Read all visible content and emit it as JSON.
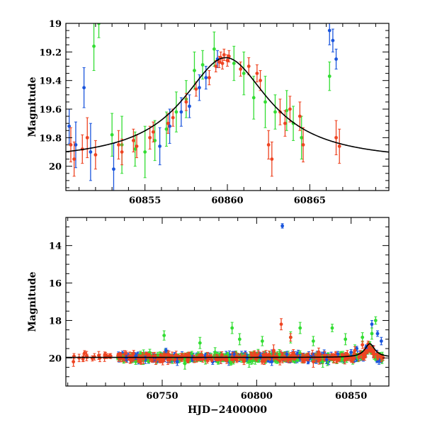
{
  "chart_data": [
    {
      "type": "scatter",
      "panel": "top",
      "xlabel": "",
      "ylabel": "Magnitude",
      "xlim": [
        60850.2,
        60869.8
      ],
      "ylim": [
        20.17,
        19.0
      ],
      "y_inverted": true,
      "x_ticks": [
        "60855",
        "60860",
        "60865"
      ],
      "y_ticks": [
        "19",
        "19.2",
        "19.4",
        "19.6",
        "19.8",
        "20"
      ],
      "colors": {
        "g": "#33dd33",
        "b": "#1a55dd",
        "r": "#ee4422",
        "model": "#000000"
      },
      "model_curve": {
        "type": "line",
        "peak_x": 60859.9,
        "peak_mag": 19.24,
        "baseline_mag": 19.97,
        "x": [
          60850.2,
          60852,
          60854,
          60855,
          60856,
          60857,
          60858,
          60859,
          60859.9,
          60861,
          60862,
          60863,
          60864,
          60865,
          60867,
          60869.8
        ],
        "y": [
          19.93,
          19.89,
          19.83,
          19.77,
          19.69,
          19.58,
          19.45,
          19.31,
          19.24,
          19.3,
          19.42,
          19.55,
          19.66,
          19.74,
          19.84,
          19.91
        ]
      },
      "series": [
        {
          "color": "g",
          "points": [
            [
              60851.9,
              19.16,
              0.17
            ],
            [
              60852.2,
              19.0,
              0.1
            ],
            [
              60853.0,
              19.78,
              0.15
            ],
            [
              60853.6,
              19.85,
              0.2
            ],
            [
              60854.4,
              19.88,
              0.12
            ],
            [
              60855.0,
              19.9,
              0.18
            ],
            [
              60855.6,
              19.82,
              0.14
            ],
            [
              60856.3,
              19.74,
              0.12
            ],
            [
              60856.9,
              19.62,
              0.14
            ],
            [
              60857.5,
              19.53,
              0.13
            ],
            [
              60858.0,
              19.33,
              0.13
            ],
            [
              60858.5,
              19.29,
              0.1
            ],
            [
              60859.2,
              19.18,
              0.12
            ],
            [
              60860.4,
              19.28,
              0.12
            ],
            [
              60861.0,
              19.35,
              0.15
            ],
            [
              60861.6,
              19.52,
              0.15
            ],
            [
              60862.3,
              19.55,
              0.18
            ],
            [
              60862.9,
              19.62,
              0.12
            ],
            [
              60863.6,
              19.61,
              0.14
            ],
            [
              60864.0,
              19.7,
              0.12
            ],
            [
              60864.5,
              19.8,
              0.15
            ],
            [
              60866.2,
              19.37,
              0.1
            ]
          ]
        },
        {
          "color": "b",
          "points": [
            [
              60850.4,
              19.72,
              0.12
            ],
            [
              60850.8,
              19.85,
              0.16
            ],
            [
              60851.3,
              19.45,
              0.14
            ],
            [
              60851.7,
              19.9,
              0.2
            ],
            [
              60853.1,
              20.02,
              0.18
            ],
            [
              60855.9,
              19.86,
              0.13
            ],
            [
              60856.5,
              19.72,
              0.12
            ],
            [
              60857.2,
              19.62,
              0.1
            ],
            [
              60857.7,
              19.58,
              0.08
            ],
            [
              60858.3,
              19.45,
              0.09
            ],
            [
              60858.7,
              19.38,
              0.08
            ],
            [
              60859.4,
              19.25,
              0.06
            ],
            [
              60866.2,
              19.05,
              0.1
            ],
            [
              60866.4,
              19.12,
              0.08
            ],
            [
              60866.6,
              19.25,
              0.07
            ]
          ]
        },
        {
          "color": "r",
          "points": [
            [
              60850.5,
              19.85,
              0.12
            ],
            [
              60850.7,
              19.95,
              0.12
            ],
            [
              60851.2,
              19.88,
              0.1
            ],
            [
              60851.5,
              19.8,
              0.14
            ],
            [
              60852.0,
              19.92,
              0.1
            ],
            [
              60853.4,
              19.85,
              0.1
            ],
            [
              60853.6,
              19.9,
              0.09
            ],
            [
              60854.3,
              19.82,
              0.08
            ],
            [
              60854.5,
              19.86,
              0.08
            ],
            [
              60855.3,
              19.8,
              0.08
            ],
            [
              60855.5,
              19.76,
              0.07
            ],
            [
              60856.4,
              19.7,
              0.07
            ],
            [
              60856.7,
              19.66,
              0.06
            ],
            [
              60857.5,
              19.55,
              0.06
            ],
            [
              60858.1,
              19.46,
              0.05
            ],
            [
              60858.9,
              19.38,
              0.05
            ],
            [
              60859.3,
              19.3,
              0.04
            ],
            [
              60859.5,
              19.27,
              0.04
            ],
            [
              60859.6,
              19.24,
              0.04
            ],
            [
              60859.7,
              19.28,
              0.04
            ],
            [
              60859.8,
              19.22,
              0.04
            ],
            [
              60860.0,
              19.26,
              0.04
            ],
            [
              60860.1,
              19.23,
              0.04
            ],
            [
              60860.8,
              19.32,
              0.05
            ],
            [
              60861.3,
              19.3,
              0.06
            ],
            [
              60861.8,
              19.35,
              0.06
            ],
            [
              60862.0,
              19.4,
              0.07
            ],
            [
              60862.5,
              19.85,
              0.1
            ],
            [
              60862.7,
              19.95,
              0.12
            ],
            [
              60863.2,
              19.62,
              0.09
            ],
            [
              60863.5,
              19.7,
              0.09
            ],
            [
              60863.8,
              19.6,
              0.09
            ],
            [
              60864.4,
              19.65,
              0.1
            ],
            [
              60864.6,
              19.85,
              0.12
            ],
            [
              60866.6,
              19.8,
              0.12
            ],
            [
              60866.8,
              19.86,
              0.12
            ]
          ]
        }
      ]
    },
    {
      "type": "scatter",
      "panel": "bottom",
      "xlabel": "HJD−2400000",
      "ylabel": "Magnitude",
      "xlim": [
        60699,
        60870
      ],
      "ylim": [
        21.5,
        12.5
      ],
      "y_inverted": true,
      "x_ticks": [
        "60750",
        "60800",
        "60850"
      ],
      "y_ticks": [
        "14",
        "16",
        "18",
        "20"
      ],
      "colors": {
        "g": "#33dd33",
        "b": "#1a55dd",
        "r": "#ee4422",
        "model": "#000000"
      },
      "model_curve": {
        "type": "line",
        "baseline_mag": 19.97,
        "peak_x": 60859.9,
        "peak_mag": 19.24,
        "x": [
          60699,
          60850,
          60855,
          60859.9,
          60864,
          60870
        ],
        "y": [
          19.97,
          19.93,
          19.77,
          19.24,
          19.66,
          19.84
        ]
      },
      "series": [
        {
          "color": "b",
          "points": [
            [
              60813.6,
              12.95,
              0.12
            ],
            [
              60731,
              20.0,
              0.15
            ],
            [
              60736,
              19.9,
              0.18
            ],
            [
              60741,
              20.1,
              0.2
            ],
            [
              60746,
              20.0,
              0.15
            ],
            [
              60752,
              19.6,
              0.12
            ],
            [
              60758,
              20.2,
              0.2
            ],
            [
              60766,
              20.0,
              0.15
            ],
            [
              60773,
              19.9,
              0.15
            ],
            [
              60781,
              20.1,
              0.2
            ],
            [
              60788,
              19.8,
              0.15
            ],
            [
              60795,
              20.0,
              0.18
            ],
            [
              60802,
              19.9,
              0.15
            ],
            [
              60808,
              20.2,
              0.2
            ],
            [
              60816,
              19.8,
              0.15
            ],
            [
              60823,
              20.0,
              0.18
            ],
            [
              60830,
              19.9,
              0.15
            ],
            [
              60837,
              20.1,
              0.2
            ],
            [
              60843,
              19.8,
              0.15
            ],
            [
              60850,
              19.7,
              0.15
            ],
            [
              60853,
              19.5,
              0.12
            ],
            [
              60858,
              19.4,
              0.1
            ],
            [
              60861,
              18.2,
              0.2
            ],
            [
              60864,
              18.7,
              0.15
            ],
            [
              60866,
              19.1,
              0.2
            ]
          ]
        },
        {
          "color": "g",
          "points": [
            [
              60751,
              18.8,
              0.25
            ],
            [
              60770,
              19.2,
              0.3
            ],
            [
              60787,
              18.4,
              0.3
            ],
            [
              60791,
              19.0,
              0.3
            ],
            [
              60803,
              19.1,
              0.25
            ],
            [
              60818,
              18.9,
              0.3
            ],
            [
              60823,
              18.4,
              0.3
            ],
            [
              60830,
              19.1,
              0.25
            ],
            [
              60840,
              18.4,
              0.2
            ],
            [
              60847,
              19.0,
              0.3
            ],
            [
              60856,
              18.9,
              0.25
            ],
            [
              60861,
              18.7,
              0.3
            ],
            [
              60863,
              18.0,
              0.2
            ],
            [
              60740,
              20.1,
              0.25
            ],
            [
              60762,
              20.3,
              0.3
            ],
            [
              60778,
              19.7,
              0.25
            ],
            [
              60796,
              20.2,
              0.3
            ],
            [
              60812,
              19.8,
              0.25
            ],
            [
              60835,
              20.2,
              0.3
            ],
            [
              60852,
              19.6,
              0.3
            ]
          ]
        },
        {
          "color": "r",
          "points": [
            [
              60703,
              20.2,
              0.25
            ],
            [
              60706,
              20.0,
              0.2
            ],
            [
              60710,
              19.9,
              0.25
            ],
            [
              60717,
              20.0,
              0.2
            ],
            [
              60720,
              19.85,
              0.15
            ],
            [
              60728,
              20.0,
              0.2
            ],
            [
              60734,
              19.95,
              0.2
            ],
            [
              60740,
              20.05,
              0.25
            ],
            [
              60746,
              19.9,
              0.2
            ],
            [
              60753,
              20.1,
              0.25
            ],
            [
              60760,
              19.95,
              0.2
            ],
            [
              60767,
              20.05,
              0.2
            ],
            [
              60774,
              19.9,
              0.2
            ],
            [
              60781,
              20.1,
              0.2
            ],
            [
              60787,
              19.95,
              0.2
            ],
            [
              60793,
              20.05,
              0.2
            ],
            [
              60799,
              19.9,
              0.2
            ],
            [
              60804,
              20.1,
              0.25
            ],
            [
              60809,
              19.6,
              0.3
            ],
            [
              60813,
              18.2,
              0.3
            ],
            [
              60818,
              18.9,
              0.2
            ],
            [
              60824,
              20.0,
              0.25
            ],
            [
              60830,
              20.2,
              0.3
            ],
            [
              60836,
              19.9,
              0.25
            ],
            [
              60842,
              20.05,
              0.2
            ],
            [
              60848,
              19.8,
              0.2
            ],
            [
              60852,
              19.6,
              0.2
            ],
            [
              60856,
              19.3,
              0.2
            ],
            [
              60859,
              19.25,
              0.15
            ],
            [
              60862,
              19.6,
              0.25
            ],
            [
              60866,
              20.0,
              0.2
            ]
          ]
        }
      ]
    }
  ]
}
